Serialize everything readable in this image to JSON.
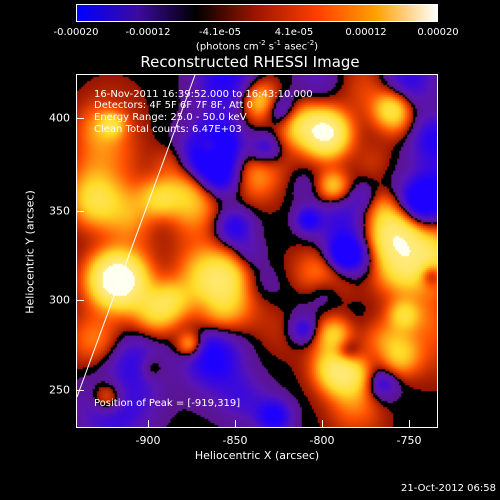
{
  "colorbar": {
    "ticks": [
      "-0.00020",
      "-0.00012",
      "-4.1e-05",
      "4.1e-05",
      "0.00012",
      "0.00020"
    ],
    "units_base": "(photons cm",
    "units_sup1": "-2",
    "units_mid": " s",
    "units_sup2": "-1",
    "units_mid2": " asec",
    "units_sup3": "-2",
    "units_end": ")",
    "colors": [
      "#0000ff",
      "#3b0aa0",
      "#000000",
      "#a01500",
      "#ff4000",
      "#ffa000",
      "#ffffff"
    ]
  },
  "title": "Reconstructed RHESSI Image",
  "overlay": {
    "line1": "16-Nov-2011 16:39:52.000 to 16:43:10.000",
    "line2": "Detectors: 4F 5F 6F 7F 8F, Att 0",
    "line3": "Energy Range: 25.0 - 50.0 keV",
    "line4": "Clean    Total counts: 6.47E+03",
    "peak": "Position of Peak = [-919,319]"
  },
  "axes": {
    "xlabel": "Heliocentric X (arcsec)",
    "ylabel": "Heliocentric Y (arcsec)",
    "xticks": [
      "-900",
      "-850",
      "-800",
      "-750"
    ],
    "yticks": [
      "400",
      "350",
      "300",
      "250"
    ]
  },
  "timestamp": "21-Oct-2012 06:58"
}
